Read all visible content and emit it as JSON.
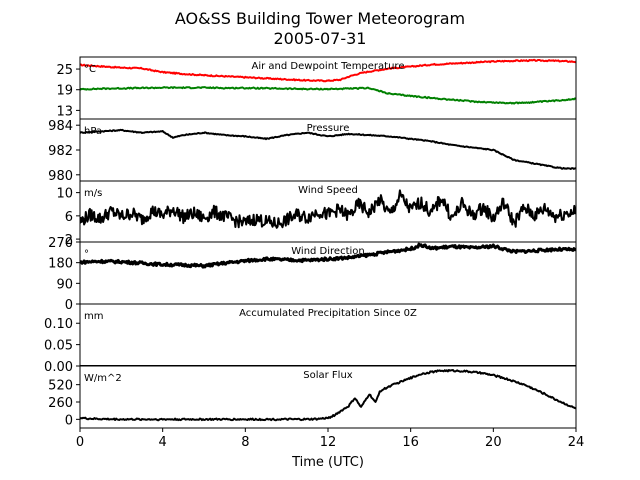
{
  "figure": {
    "title": "AO&SS Building Tower Meteorogram",
    "subtitle": "2005-07-31",
    "xlabel": "Time (UTC)"
  },
  "x_axis": {
    "range": [
      0,
      24
    ],
    "ticks": [
      0,
      4,
      8,
      12,
      16,
      20,
      24
    ]
  },
  "chart_data": [
    {
      "type": "line",
      "title": "Air and Dewpoint Temperature",
      "unit": "°C",
      "ylim": [
        10.5,
        28.5
      ],
      "yticks": [
        13,
        19,
        25
      ],
      "series": [
        {
          "color": "#ff0000",
          "x": [
            0,
            1,
            2,
            3,
            3.5,
            4,
            5,
            6,
            7,
            8,
            9,
            10,
            11,
            12,
            12.6,
            13,
            13.5,
            14,
            15,
            16,
            17,
            18,
            19,
            20,
            21,
            22,
            23,
            24
          ],
          "y": [
            26.2,
            25.8,
            25.4,
            25.2,
            24.6,
            24.1,
            23.6,
            23.2,
            22.9,
            22.6,
            22.3,
            22.0,
            21.7,
            21.6,
            21.9,
            22.8,
            23.7,
            24.3,
            25.2,
            25.7,
            26.3,
            26.6,
            26.9,
            27.2,
            27.4,
            27.5,
            27.4,
            27.1
          ]
        },
        {
          "color": "#008000",
          "x": [
            0,
            1,
            2,
            3,
            4,
            5,
            6,
            7,
            8,
            9,
            10,
            11,
            12,
            13,
            14,
            14.5,
            15,
            16,
            17,
            18,
            19,
            20,
            21,
            22,
            23,
            24
          ],
          "y": [
            19.1,
            19.3,
            19.4,
            19.5,
            19.6,
            19.6,
            19.6,
            19.5,
            19.5,
            19.4,
            19.3,
            19.2,
            19.2,
            19.3,
            19.5,
            18.6,
            17.8,
            17.2,
            16.6,
            16.1,
            15.6,
            15.3,
            15.1,
            15.4,
            15.8,
            16.4
          ]
        }
      ]
    },
    {
      "type": "line",
      "title": "Pressure",
      "unit": "hPa",
      "ylim": [
        979.5,
        984.5
      ],
      "yticks": [
        980,
        982,
        984
      ],
      "series": [
        {
          "color": "#000000",
          "x": [
            0,
            1,
            2,
            3,
            4,
            4.5,
            5,
            6,
            7,
            8,
            9,
            10,
            11,
            12,
            13,
            14,
            15,
            16,
            17,
            18,
            19,
            20,
            20.5,
            21,
            22,
            23,
            23.5,
            24
          ],
          "y": [
            983.4,
            983.5,
            983.6,
            983.4,
            983.5,
            983.0,
            983.2,
            983.4,
            983.2,
            983.1,
            982.9,
            983.2,
            983.4,
            983.1,
            983.3,
            983.2,
            983.1,
            982.9,
            982.7,
            982.4,
            982.2,
            982.0,
            981.6,
            981.2,
            980.9,
            980.6,
            980.5,
            980.5
          ]
        }
      ]
    },
    {
      "type": "line",
      "title": "Wind Speed",
      "unit": "m/s",
      "ylim": [
        1.5,
        12
      ],
      "yticks": [
        2,
        6,
        10
      ],
      "series": [
        {
          "color": "#000000",
          "x": [
            0,
            0.5,
            1,
            1.5,
            2,
            2.5,
            3,
            3.5,
            4,
            4.5,
            5,
            5.5,
            6,
            6.5,
            7,
            7.5,
            8,
            8.5,
            9,
            9.5,
            10,
            10.5,
            11,
            11.5,
            12,
            12.5,
            13,
            13.5,
            14,
            14.5,
            15,
            15.5,
            16,
            16.5,
            17,
            17.5,
            18,
            18.5,
            19,
            19.5,
            20,
            20.5,
            21,
            21.5,
            22,
            22.5,
            23,
            23.5,
            24
          ],
          "y": [
            5.0,
            6.2,
            5.5,
            6.8,
            5.9,
            6.5,
            5.4,
            6.9,
            6.1,
            7.2,
            5.8,
            6.4,
            5.6,
            6.7,
            5.9,
            5.2,
            4.8,
            5.5,
            5.0,
            4.6,
            5.3,
            6.2,
            5.7,
            6.8,
            6.2,
            7.1,
            6.0,
            8.0,
            6.5,
            8.8,
            6.2,
            9.5,
            7.0,
            8.4,
            6.4,
            9.2,
            5.5,
            8.1,
            6.0,
            7.5,
            5.6,
            8.3,
            4.8,
            7.4,
            6.1,
            7.3,
            5.9,
            6.5,
            6.8
          ]
        }
      ]
    },
    {
      "type": "scatter",
      "title": "Wind Direction",
      "unit": "°",
      "ylim": [
        0,
        270
      ],
      "yticks": [
        0,
        90,
        180,
        270
      ],
      "series": [
        {
          "color": "#000000",
          "x": [
            0,
            1,
            2,
            3,
            4,
            5,
            6,
            7,
            8,
            9,
            10,
            11,
            12,
            13,
            14,
            15,
            16,
            16.5,
            17,
            18,
            19,
            20,
            21,
            22,
            23,
            24
          ],
          "y": [
            182,
            186,
            184,
            178,
            172,
            170,
            166,
            178,
            188,
            196,
            192,
            190,
            196,
            202,
            214,
            228,
            240,
            258,
            242,
            250,
            244,
            252,
            228,
            232,
            238,
            236
          ]
        }
      ]
    },
    {
      "type": "line",
      "title": "Accumulated Precipitation Since 0Z",
      "unit": "mm",
      "ylim": [
        0,
        0.145
      ],
      "yticks": [
        0.0,
        0.05,
        0.1
      ],
      "ytick_labels": [
        "0.00",
        "0.05",
        "0.10"
      ],
      "series": [
        {
          "color": "#000000",
          "x": [
            0,
            24
          ],
          "y": [
            0,
            0
          ]
        }
      ]
    },
    {
      "type": "line",
      "title": "Solar Flux",
      "unit": "W/m^2",
      "ylim": [
        -130,
        800
      ],
      "yticks": [
        0,
        260,
        520
      ],
      "series": [
        {
          "color": "#000000",
          "x": [
            0,
            0.5,
            1,
            2,
            3,
            4,
            5,
            6,
            7,
            8,
            9,
            10,
            11,
            11.5,
            12,
            12.3,
            12.6,
            13,
            13.3,
            13.6,
            14,
            14.3,
            14.5,
            15,
            15.5,
            16,
            16.5,
            17,
            17.5,
            18,
            18.5,
            19,
            19.5,
            20,
            20.5,
            21,
            21.5,
            22,
            22.5,
            23,
            23.5,
            24
          ],
          "y": [
            20,
            10,
            5,
            0,
            0,
            0,
            0,
            0,
            0,
            0,
            0,
            0,
            0,
            5,
            20,
            60,
            120,
            200,
            320,
            180,
            380,
            250,
            420,
            500,
            560,
            620,
            680,
            710,
            730,
            730,
            725,
            710,
            690,
            660,
            620,
            570,
            520,
            450,
            380,
            300,
            230,
            160
          ]
        }
      ]
    }
  ]
}
